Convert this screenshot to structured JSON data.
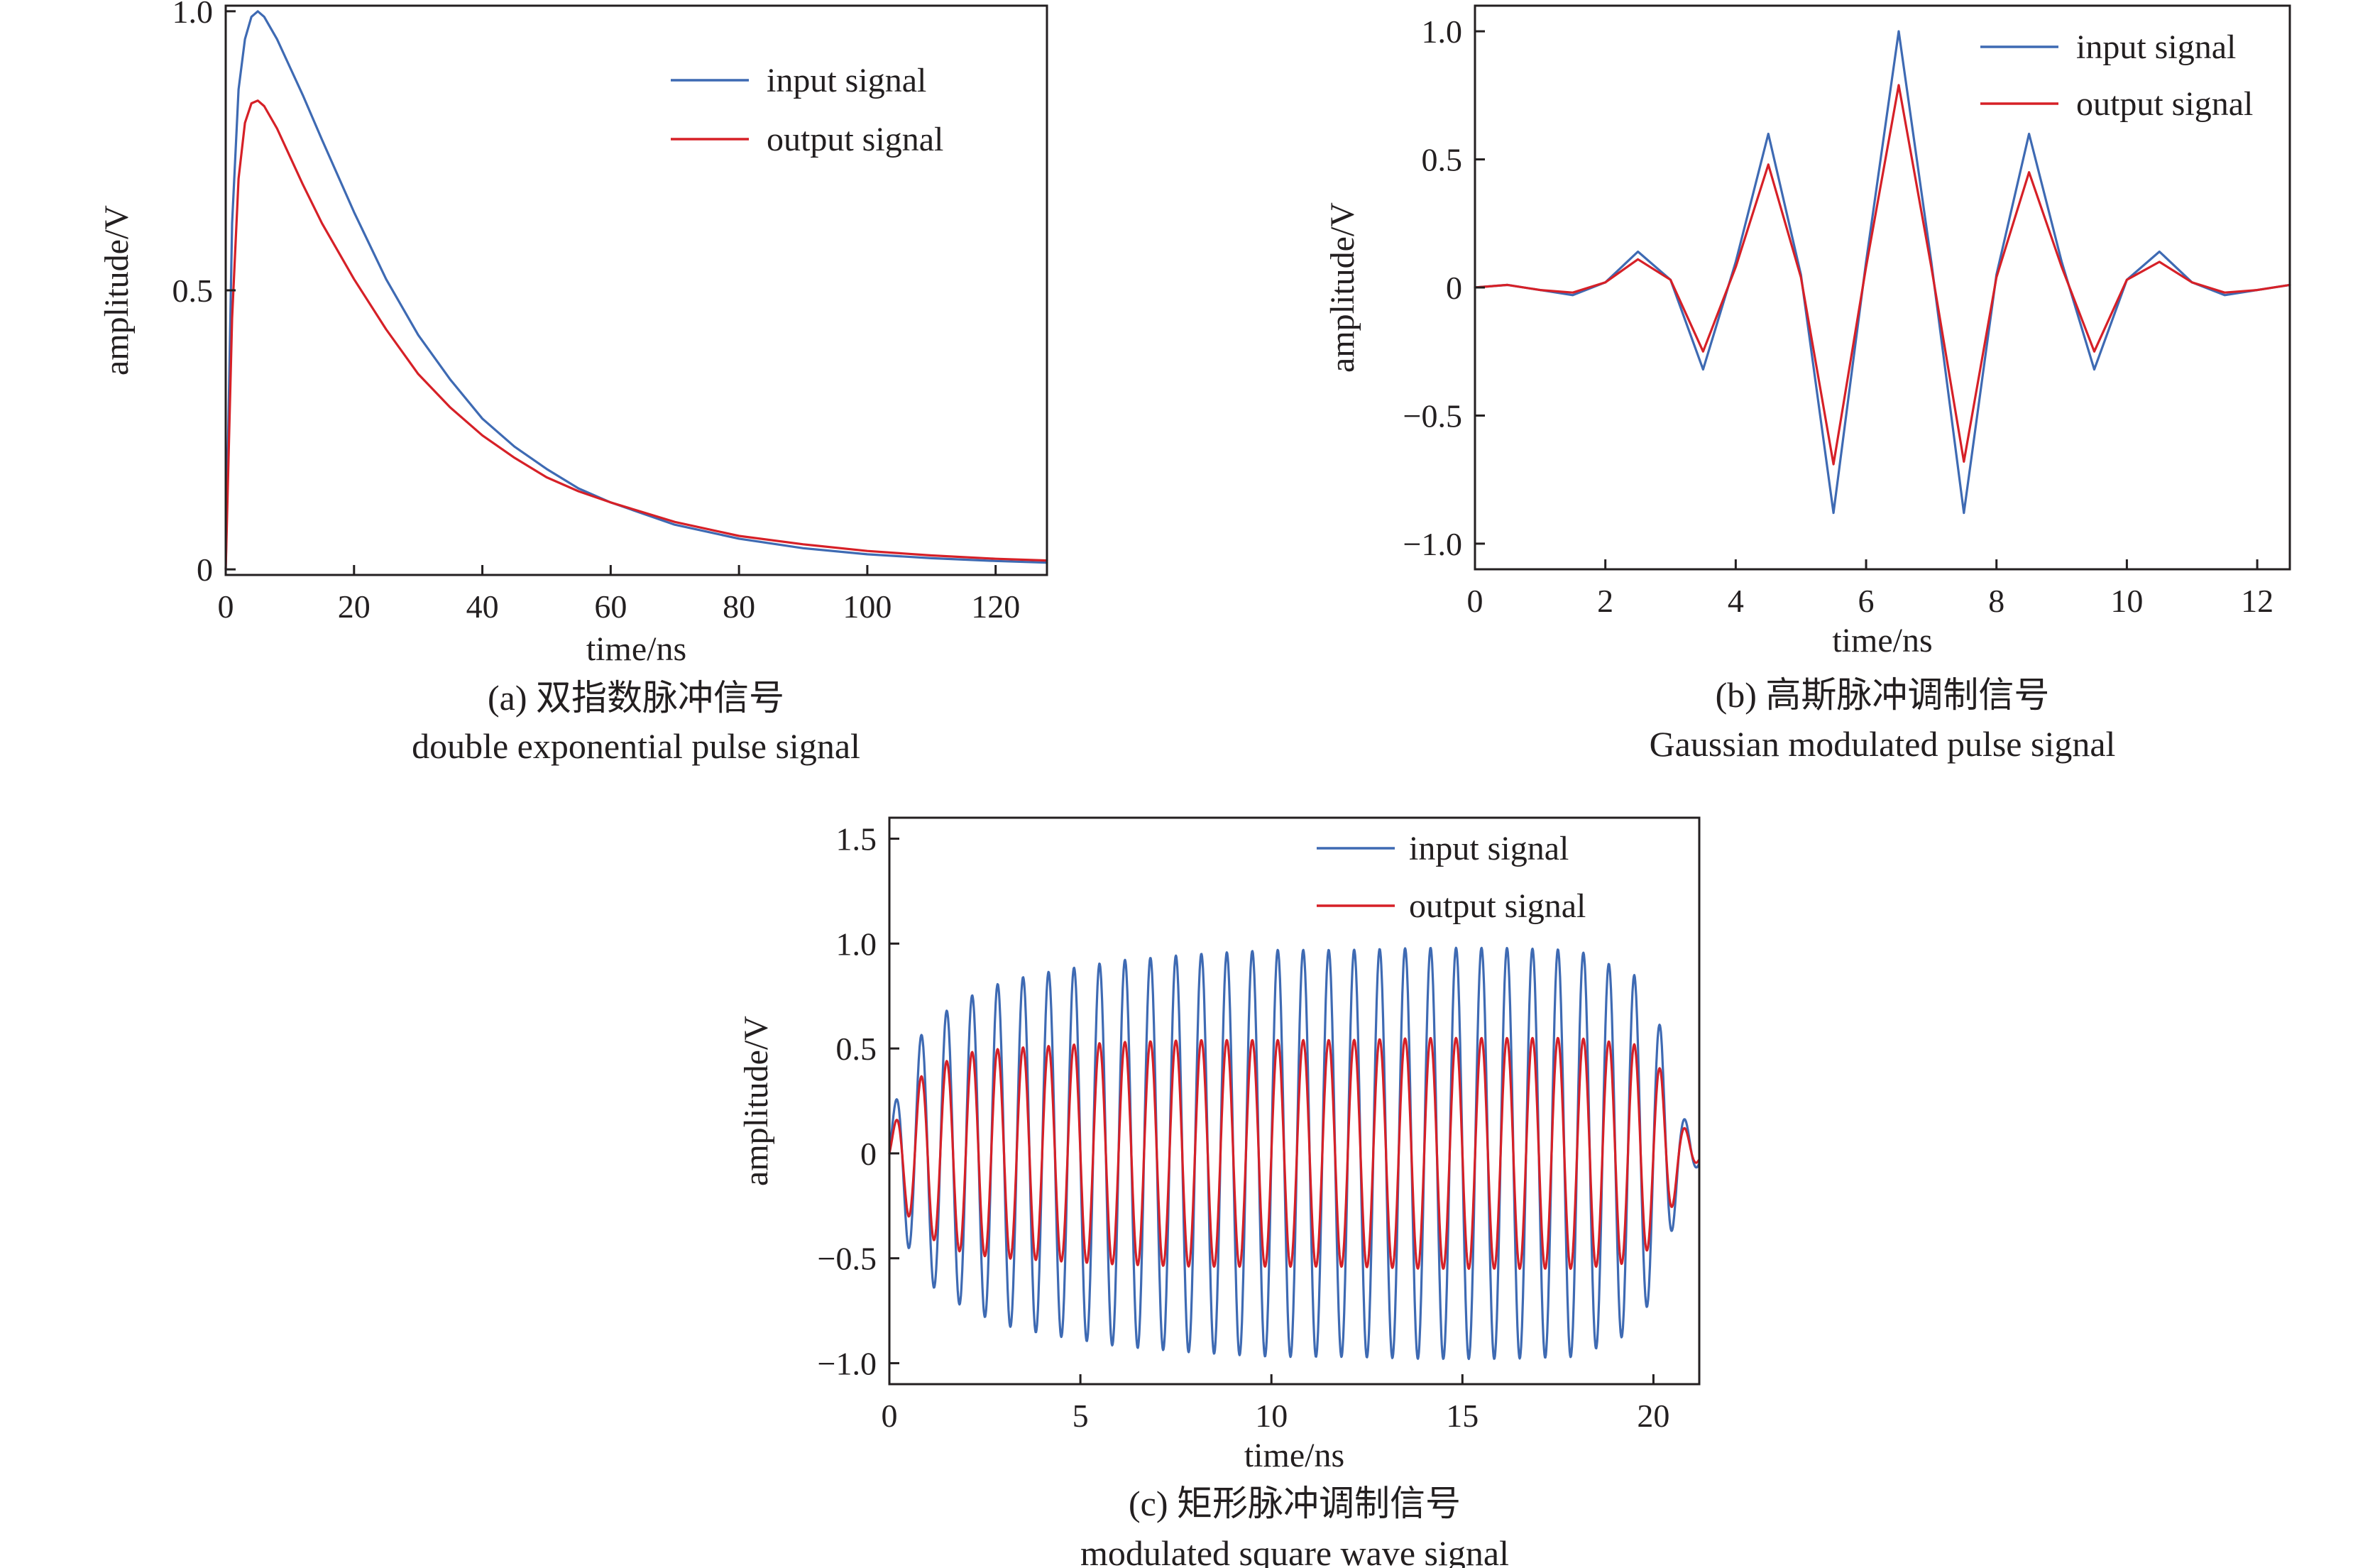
{
  "colors": {
    "input": "#3e6ab3",
    "output": "#d62027",
    "axis": "#231f20"
  },
  "chart_data": [
    {
      "id": "a",
      "type": "line",
      "title": "",
      "xlabel": "time/ns",
      "ylabel": "amplitude/V",
      "xlim": [
        0,
        128
      ],
      "ylim": [
        -0.01,
        1.01
      ],
      "xticks": [
        0,
        20,
        40,
        60,
        80,
        100,
        120
      ],
      "xtick_labels": [
        "0",
        "20",
        "40",
        "60",
        "80",
        "100",
        "120"
      ],
      "yticks": [
        0,
        0.5,
        1.0
      ],
      "ytick_labels": [
        "0",
        "0.5",
        "1.0"
      ],
      "legend": {
        "position": "top-right",
        "entries": [
          "input signal",
          "output signal"
        ]
      },
      "caption_line1": "(a) 双指数脉冲信号",
      "caption_line2": "double exponential pulse signal",
      "series": [
        {
          "name": "input signal",
          "color": "#3e6ab3",
          "x": [
            0,
            1,
            2,
            3,
            4,
            5,
            6,
            8,
            10,
            12,
            15,
            20,
            25,
            30,
            35,
            40,
            45,
            50,
            55,
            60,
            70,
            80,
            90,
            100,
            110,
            120,
            128
          ],
          "y": [
            0,
            0.62,
            0.86,
            0.95,
            0.99,
            1.0,
            0.99,
            0.95,
            0.9,
            0.85,
            0.77,
            0.64,
            0.52,
            0.42,
            0.34,
            0.27,
            0.22,
            0.18,
            0.145,
            0.12,
            0.08,
            0.055,
            0.038,
            0.027,
            0.02,
            0.015,
            0.012
          ]
        },
        {
          "name": "output signal",
          "color": "#d62027",
          "x": [
            0,
            1,
            2,
            3,
            4,
            5,
            6,
            8,
            10,
            12,
            15,
            20,
            25,
            30,
            35,
            40,
            45,
            50,
            55,
            60,
            70,
            80,
            90,
            100,
            110,
            120,
            128
          ],
          "y": [
            0,
            0.45,
            0.7,
            0.8,
            0.835,
            0.84,
            0.83,
            0.79,
            0.74,
            0.69,
            0.62,
            0.52,
            0.43,
            0.35,
            0.29,
            0.24,
            0.2,
            0.165,
            0.14,
            0.12,
            0.085,
            0.06,
            0.045,
            0.033,
            0.025,
            0.019,
            0.016
          ]
        }
      ]
    },
    {
      "id": "b",
      "type": "line",
      "title": "",
      "xlabel": "time/ns",
      "ylabel": "amplitude/V",
      "xlim": [
        0,
        12.5
      ],
      "ylim": [
        -1.1,
        1.1
      ],
      "xticks": [
        0,
        2,
        4,
        6,
        8,
        10,
        12
      ],
      "xtick_labels": [
        "0",
        "2",
        "4",
        "6",
        "8",
        "10",
        "12"
      ],
      "yticks": [
        -1.0,
        -0.5,
        0,
        0.5,
        1.0
      ],
      "ytick_labels": [
        "−1.0",
        "−0.5",
        "0",
        "0.5",
        "1.0"
      ],
      "legend": {
        "position": "top-right",
        "entries": [
          "input signal",
          "output signal"
        ]
      },
      "caption_line1": "(b) 高斯脉冲调制信号",
      "caption_line2": "Gaussian modulated pulse signal",
      "series": [
        {
          "name": "input signal",
          "color": "#3e6ab3",
          "x": [
            0,
            0.5,
            1,
            1.5,
            2,
            2.5,
            3,
            3.5,
            4,
            4.5,
            5,
            5.5,
            6,
            6.5,
            7,
            7.5,
            8,
            8.5,
            9,
            9.5,
            10,
            10.5,
            11,
            11.5,
            12,
            12.5
          ],
          "y": [
            0.0,
            0.01,
            -0.01,
            -0.03,
            0.02,
            0.14,
            0.03,
            -0.32,
            0.1,
            0.6,
            0.05,
            -0.88,
            0.1,
            1.0,
            0.1,
            -0.88,
            0.05,
            0.6,
            0.1,
            -0.32,
            0.03,
            0.14,
            0.02,
            -0.03,
            -0.01,
            0.01
          ]
        },
        {
          "name": "output signal",
          "color": "#d62027",
          "x": [
            0,
            0.5,
            1,
            1.5,
            2,
            2.5,
            3,
            3.5,
            4,
            4.5,
            5,
            5.5,
            6,
            6.5,
            7,
            7.5,
            8,
            8.5,
            9,
            9.5,
            10,
            10.5,
            11,
            11.5,
            12,
            12.5
          ],
          "y": [
            0.0,
            0.01,
            -0.01,
            -0.02,
            0.02,
            0.11,
            0.03,
            -0.25,
            0.08,
            0.48,
            0.04,
            -0.69,
            0.08,
            0.79,
            0.08,
            -0.68,
            0.04,
            0.45,
            0.08,
            -0.25,
            0.03,
            0.1,
            0.02,
            -0.02,
            -0.01,
            0.01
          ]
        }
      ]
    },
    {
      "id": "c",
      "type": "line",
      "title": "",
      "xlabel": "time/ns",
      "ylabel": "amplitude/V",
      "xlim": [
        0,
        21.2
      ],
      "ylim": [
        -1.1,
        1.6
      ],
      "xticks": [
        0,
        5,
        10,
        15,
        20
      ],
      "xtick_labels": [
        "0",
        "5",
        "10",
        "15",
        "20"
      ],
      "yticks": [
        -1.0,
        -0.5,
        0,
        0.5,
        1.0,
        1.5
      ],
      "ytick_labels": [
        "−1.0",
        "−0.5",
        "0",
        "0.5",
        "1.0",
        "1.5"
      ],
      "legend": {
        "position": "top-right",
        "entries": [
          "input signal",
          "output signal"
        ]
      },
      "caption_line1": "(c) 矩形脉冲调制信号",
      "caption_line2": "modulated square wave signal",
      "series": [
        {
          "name": "input signal",
          "color": "#3e6ab3",
          "waveform": "sine",
          "frequency_ghz": 1.5,
          "envelope_t": [
            0,
            0.5,
            1.0,
            2.0,
            3.0,
            4.0,
            5.0,
            6.0,
            8.0,
            10.0,
            12.0,
            14.0,
            16.0,
            18.0,
            19.5,
            20.2,
            20.7,
            21.2
          ],
          "envelope_amp": [
            0.15,
            0.45,
            0.62,
            0.74,
            0.82,
            0.86,
            0.89,
            0.92,
            0.95,
            0.97,
            0.97,
            0.98,
            0.98,
            0.97,
            0.85,
            0.6,
            0.2,
            0.05
          ]
        },
        {
          "name": "output signal",
          "color": "#d62027",
          "waveform": "sine",
          "frequency_ghz": 1.5,
          "envelope_t": [
            0,
            0.5,
            1.0,
            2.0,
            3.0,
            4.0,
            5.0,
            6.0,
            8.0,
            10.0,
            12.0,
            14.0,
            16.0,
            18.0,
            19.5,
            20.2,
            20.7,
            21.2
          ],
          "envelope_amp": [
            0.08,
            0.3,
            0.4,
            0.48,
            0.5,
            0.51,
            0.52,
            0.53,
            0.54,
            0.54,
            0.54,
            0.55,
            0.55,
            0.55,
            0.52,
            0.4,
            0.15,
            0.03
          ]
        }
      ]
    }
  ]
}
